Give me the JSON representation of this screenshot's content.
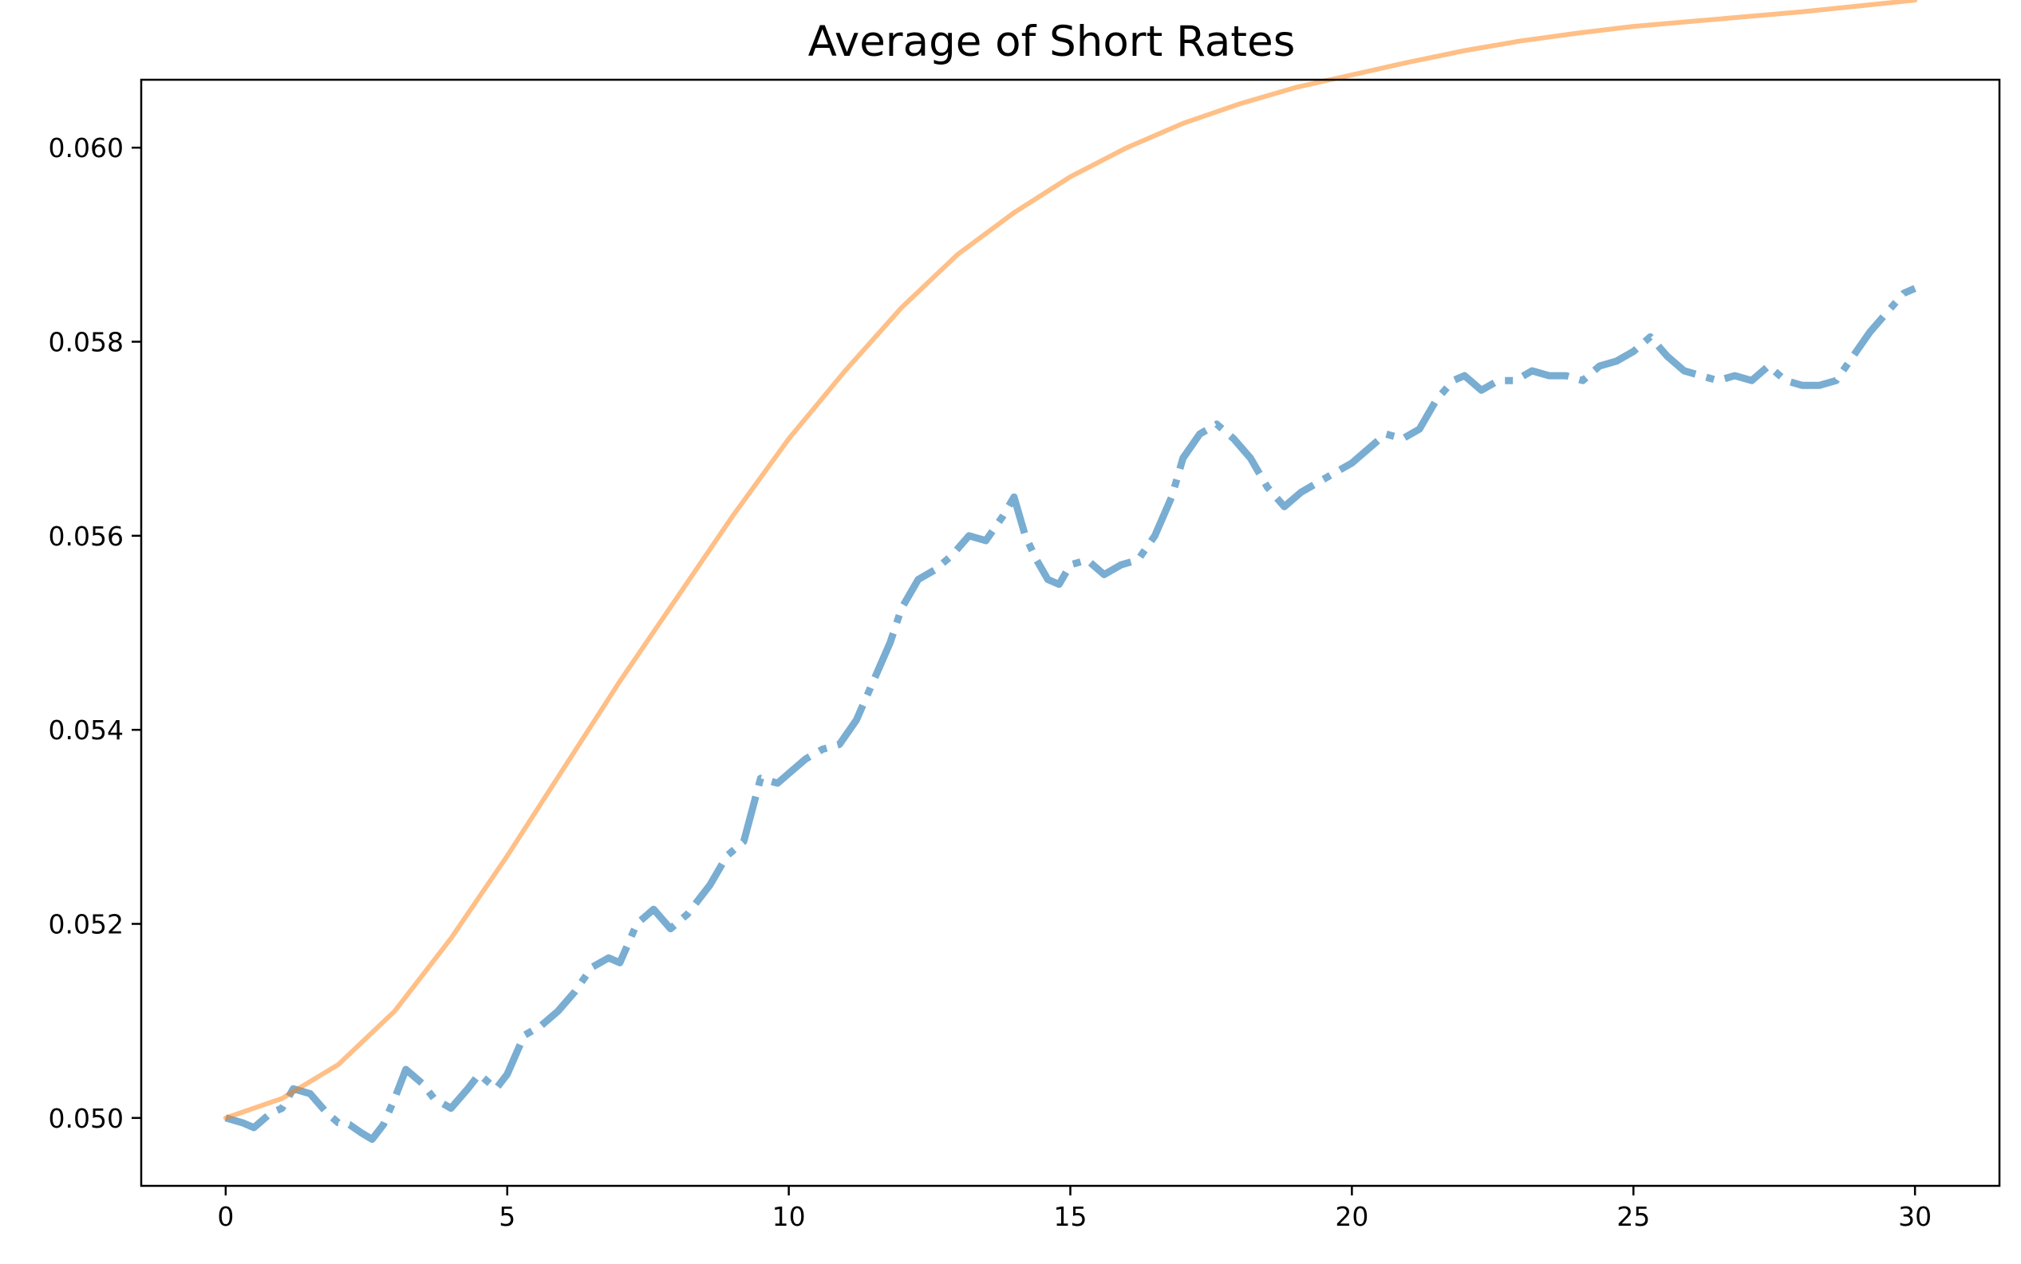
{
  "chart_data": {
    "type": "line",
    "title": "Average of Short Rates",
    "xlabel": "",
    "ylabel": "",
    "xlim": [
      -1.5,
      31.5
    ],
    "ylim": [
      0.0493,
      0.0607
    ],
    "x_ticks": [
      0,
      5,
      10,
      15,
      20,
      25,
      30
    ],
    "x_tick_labels": [
      "0",
      "5",
      "10",
      "15",
      "20",
      "25",
      "30"
    ],
    "y_ticks": [
      0.05,
      0.052,
      0.054,
      0.056,
      0.058,
      0.06
    ],
    "y_tick_labels": [
      "0.050",
      "0.052",
      "0.054",
      "0.056",
      "0.058",
      "0.060"
    ],
    "grid": false,
    "legend": "none",
    "series": [
      {
        "color": "#1f77b4",
        "style": "dashdot",
        "opacity": 0.6,
        "x": [
          0,
          0.3,
          0.5,
          0.8,
          1.0,
          1.2,
          1.5,
          1.8,
          2.0,
          2.2,
          2.4,
          2.6,
          2.8,
          3.0,
          3.2,
          3.5,
          3.7,
          4.0,
          4.3,
          4.5,
          4.8,
          5.0,
          5.3,
          5.6,
          5.9,
          6.2,
          6.5,
          6.8,
          7.0,
          7.3,
          7.6,
          7.9,
          8.2,
          8.6,
          8.9,
          9.2,
          9.5,
          9.8,
          10.0,
          10.3,
          10.6,
          10.9,
          11.2,
          11.5,
          11.8,
          12.0,
          12.3,
          12.6,
          12.9,
          13.2,
          13.5,
          13.8,
          14.0,
          14.2,
          14.4,
          14.6,
          14.8,
          15.0,
          15.3,
          15.6,
          15.9,
          16.2,
          16.5,
          16.8,
          17.0,
          17.3,
          17.6,
          17.9,
          18.2,
          18.5,
          18.8,
          19.1,
          19.4,
          19.7,
          20.0,
          20.3,
          20.6,
          20.9,
          21.2,
          21.5,
          21.8,
          22.0,
          22.3,
          22.6,
          22.9,
          23.2,
          23.5,
          23.8,
          24.1,
          24.4,
          24.7,
          25.0,
          25.3,
          25.6,
          25.9,
          26.2,
          26.5,
          26.8,
          27.1,
          27.4,
          27.7,
          28.0,
          28.3,
          28.6,
          28.9,
          29.2,
          29.5,
          29.8,
          30.0
        ],
        "y": [
          0.05,
          0.04995,
          0.0499,
          0.05005,
          0.0501,
          0.0503,
          0.05025,
          0.05005,
          0.04995,
          0.04993,
          0.04985,
          0.04978,
          0.04993,
          0.0502,
          0.0505,
          0.05035,
          0.0502,
          0.0501,
          0.0503,
          0.05045,
          0.0503,
          0.05045,
          0.05085,
          0.05095,
          0.0511,
          0.0513,
          0.05155,
          0.05165,
          0.0516,
          0.052,
          0.05215,
          0.05195,
          0.0521,
          0.0524,
          0.0527,
          0.05285,
          0.0535,
          0.05345,
          0.05355,
          0.0537,
          0.0538,
          0.05385,
          0.0541,
          0.0545,
          0.0549,
          0.05525,
          0.05555,
          0.05565,
          0.0558,
          0.056,
          0.05595,
          0.0562,
          0.0564,
          0.056,
          0.05575,
          0.05555,
          0.0555,
          0.0557,
          0.05575,
          0.0556,
          0.0557,
          0.05575,
          0.056,
          0.0564,
          0.0568,
          0.05705,
          0.05715,
          0.057,
          0.0568,
          0.0565,
          0.0563,
          0.05645,
          0.05655,
          0.05665,
          0.05675,
          0.0569,
          0.05705,
          0.057,
          0.0571,
          0.0574,
          0.0576,
          0.05765,
          0.0575,
          0.0576,
          0.0576,
          0.0577,
          0.05765,
          0.05765,
          0.0576,
          0.05775,
          0.0578,
          0.0579,
          0.05805,
          0.05785,
          0.0577,
          0.05765,
          0.0576,
          0.05765,
          0.0576,
          0.05775,
          0.0576,
          0.05755,
          0.05755,
          0.0576,
          0.05785,
          0.0581,
          0.0583,
          0.0585,
          0.05855
        ]
      },
      {
        "color": "#ff7f0e",
        "style": "solid",
        "opacity": 0.5,
        "x": [
          0,
          1,
          2,
          3,
          4,
          5,
          6,
          7,
          8,
          9,
          10,
          11,
          12,
          13,
          14,
          15,
          16,
          17,
          18,
          19,
          20,
          21,
          22,
          23,
          24,
          25,
          26,
          27,
          28,
          29,
          30
        ],
        "y": [
          0.05,
          0.0502,
          0.05055,
          0.0511,
          0.05185,
          0.0527,
          0.0536,
          0.0545,
          0.05535,
          0.0562,
          0.057,
          0.0577,
          0.05835,
          0.0589,
          0.05933,
          0.0597,
          0.06,
          0.06025,
          0.06045,
          0.06062,
          0.06075,
          0.06088,
          0.061,
          0.0611,
          0.06118,
          0.06125,
          0.0613,
          0.06135,
          0.0614,
          0.06146,
          0.06152
        ]
      }
    ]
  }
}
